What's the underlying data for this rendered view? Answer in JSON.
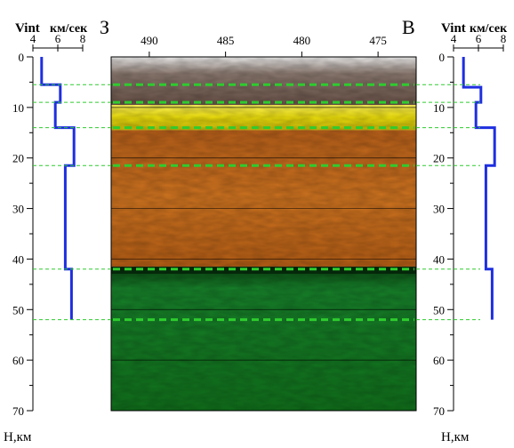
{
  "labels": {
    "left_direction": "З",
    "right_direction": "В",
    "velocity_title": "Vint",
    "velocity_unit": "км/сек",
    "depth_label": "Н,км"
  },
  "colors": {
    "velocity_line": "#1e2fe0",
    "horizon_line": "#2ecc2e",
    "layer_top": "#8a7464",
    "layer_yellow": "#f2ea10",
    "layer_orange": "#c56a18",
    "layer_green": "#137a1c"
  },
  "chart_data": [
    {
      "type": "line",
      "panel": "left",
      "xlabel": "Vint км/сек",
      "ylabel": "Н,км",
      "xlim": [
        4,
        8
      ],
      "ylim": [
        0,
        70
      ],
      "x_ticks": [
        "4",
        "6",
        "8"
      ],
      "y_ticks": [
        "0",
        "10",
        "20",
        "30",
        "40",
        "50",
        "60",
        "70"
      ],
      "series": [
        {
          "step_profile": [
            {
              "v": 4.7,
              "h_top": 0,
              "h_bottom": 5.5
            },
            {
              "v": 6.2,
              "h_top": 5.5,
              "h_bottom": 9
            },
            {
              "v": 5.8,
              "h_top": 9,
              "h_bottom": 14
            },
            {
              "v": 7.3,
              "h_top": 14,
              "h_bottom": 21.5
            },
            {
              "v": 6.6,
              "h_top": 21.5,
              "h_bottom": 42
            },
            {
              "v": 7.1,
              "h_top": 42,
              "h_bottom": 52
            }
          ]
        }
      ]
    },
    {
      "type": "heatmap",
      "panel": "center",
      "x_ticks": [
        "490",
        "485",
        "480",
        "475"
      ],
      "x_tick_values": [
        490,
        485,
        480,
        475
      ],
      "xlim": [
        492.5,
        472.5
      ],
      "ylim": [
        0,
        70
      ],
      "layers": [
        {
          "h_top": 0,
          "h_bottom": 9.5,
          "color_key": "layer_top"
        },
        {
          "h_top": 9.5,
          "h_bottom": 14.5,
          "color_key": "layer_yellow"
        },
        {
          "h_top": 14.5,
          "h_bottom": 41.5,
          "color_key": "layer_orange"
        },
        {
          "h_top": 41.5,
          "h_bottom": 70,
          "color_key": "layer_green"
        }
      ],
      "horizons_km": [
        5.5,
        9,
        14,
        21.5,
        42,
        52
      ],
      "grid_lines_km": [
        10,
        20,
        30,
        40,
        50,
        60
      ]
    },
    {
      "type": "line",
      "panel": "right",
      "xlabel": "Vint км/сек",
      "ylabel": "Н,км",
      "xlim": [
        4,
        8
      ],
      "ylim": [
        0,
        70
      ],
      "x_ticks": [
        "4",
        "6",
        "8"
      ],
      "y_ticks": [
        "0",
        "10",
        "20",
        "30",
        "40",
        "50",
        "60",
        "70"
      ],
      "series": [
        {
          "step_profile": [
            {
              "v": 4.8,
              "h_top": 0,
              "h_bottom": 6
            },
            {
              "v": 6.2,
              "h_top": 6,
              "h_bottom": 9
            },
            {
              "v": 5.8,
              "h_top": 9,
              "h_bottom": 14
            },
            {
              "v": 7.3,
              "h_top": 14,
              "h_bottom": 21.5
            },
            {
              "v": 6.6,
              "h_top": 21.5,
              "h_bottom": 42
            },
            {
              "v": 7.1,
              "h_top": 42,
              "h_bottom": 52
            }
          ]
        }
      ]
    }
  ]
}
